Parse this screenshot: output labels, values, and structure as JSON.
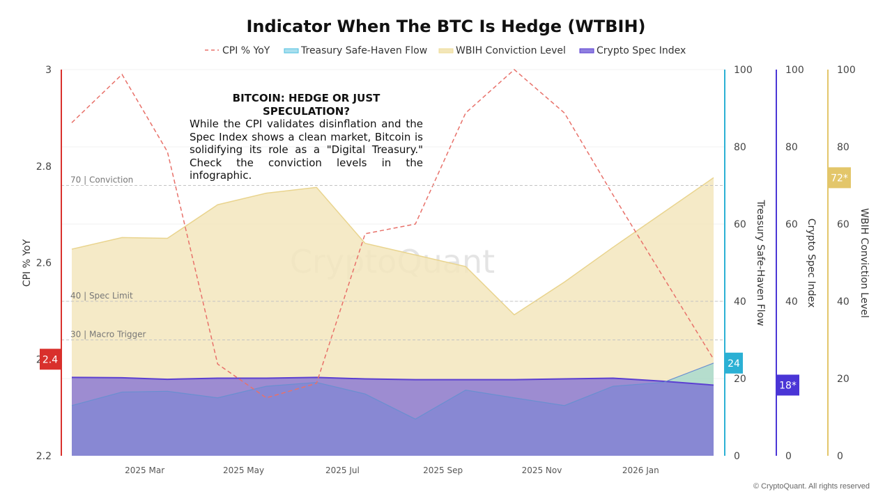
{
  "title": "Indicator When The BTC Is Hedge (WTBIH)",
  "legend": [
    {
      "label": "CPI % YoY",
      "color": "#e8716a",
      "style": "dashed"
    },
    {
      "label": "Treasury Safe-Haven Flow",
      "color": "#4fc0e0",
      "style": "area"
    },
    {
      "label": "WBIH Conviction Level",
      "color": "#eedc99",
      "style": "area"
    },
    {
      "label": "Crypto Spec Index",
      "color": "#5b3fd1",
      "style": "area"
    }
  ],
  "colors": {
    "cpi": "#e8716a",
    "treasury": "#5fc3dd",
    "conviction": "#e9d48e",
    "spec": "#5b3fd1",
    "cpi_badge": "#d9302c",
    "treasury_badge": "#2bb0d4",
    "spec_badge": "#4a35d6",
    "conviction_badge": "#e3c66a"
  },
  "annotation": {
    "title": "BITCOIN: HEDGE OR JUST SPECULATION?",
    "body": "While the CPI validates disinflation and the Spec Index shows a clean market, Bitcoin is solidifying its role as a \"Digital Treasury.\" Check the conviction levels in the infographic."
  },
  "watermark": "CryptoQuant",
  "copyright": "© CryptoQuant. All rights reserved",
  "chart_data": {
    "type": "line",
    "x_tick_labels": [
      "2025 Mar",
      "2025 May",
      "2025 Jul",
      "2025 Sep",
      "2025 Nov",
      "2026 Jan"
    ],
    "x": [
      "2025-01-15",
      "2025-02-15",
      "2025-03-15",
      "2025-04-15",
      "2025-05-15",
      "2025-06-15",
      "2025-07-15",
      "2025-08-15",
      "2025-09-15",
      "2025-10-15",
      "2025-11-15",
      "2025-12-15",
      "2026-01-15",
      "2026-02-15"
    ],
    "axes": {
      "cpi": {
        "title": "CPI % YoY",
        "ylim": [
          2.2,
          3.0
        ],
        "ticks": [
          "2.2",
          "2.4",
          "2.6",
          "2.8",
          "3"
        ]
      },
      "treasury": {
        "title": "Treasury Safe-Haven Flow",
        "ylim": [
          0,
          100
        ],
        "ticks": [
          "0",
          "20",
          "40",
          "60",
          "80",
          "100"
        ]
      },
      "spec": {
        "title": "Crypto Spec Index",
        "ylim": [
          0,
          100
        ],
        "ticks": [
          "0",
          "20",
          "40",
          "60",
          "80",
          "100"
        ]
      },
      "conviction": {
        "title": "WBIH Conviction Level",
        "ylim": [
          0,
          100
        ],
        "ticks": [
          "0",
          "20",
          "40",
          "60",
          "80",
          "100"
        ]
      }
    },
    "series": [
      {
        "name": "CPI % YoY",
        "axis": "cpi",
        "type": "line",
        "values": [
          2.89,
          2.99,
          2.83,
          2.39,
          2.32,
          2.35,
          2.66,
          2.68,
          2.91,
          3.0,
          2.91,
          2.74,
          2.57,
          2.4
        ]
      },
      {
        "name": "Treasury Safe-Haven Flow",
        "axis": "treasury",
        "type": "area",
        "values": [
          13,
          16.5,
          16.7,
          15,
          18,
          19,
          16,
          9.5,
          17,
          15,
          13,
          18,
          19,
          24
        ]
      },
      {
        "name": "WBIH Conviction Level",
        "axis": "conviction",
        "type": "area",
        "values": [
          53.5,
          56.5,
          56.3,
          65,
          68,
          69.5,
          55,
          52,
          49,
          36.5,
          45,
          54,
          63,
          72
        ]
      },
      {
        "name": "Crypto Spec Index",
        "axis": "spec",
        "type": "area",
        "values": [
          20.3,
          20.2,
          19.8,
          20.1,
          20.1,
          20.3,
          19.9,
          19.7,
          19.7,
          19.7,
          19.9,
          20.1,
          19.3,
          18.3
        ]
      }
    ],
    "reference_lines": [
      {
        "label": "70 | Conviction",
        "axis": "conviction",
        "value": 70
      },
      {
        "label": "40 | Spec Limit",
        "axis": "conviction",
        "value": 40
      },
      {
        "label": "30 | Macro Trigger",
        "axis": "conviction",
        "value": 30
      }
    ],
    "last_value_badges": [
      {
        "series": "CPI % YoY",
        "text": "2.4"
      },
      {
        "series": "Treasury Safe-Haven Flow",
        "text": "24"
      },
      {
        "series": "Crypto Spec Index",
        "text": "18*"
      },
      {
        "series": "WBIH Conviction Level",
        "text": "72*"
      }
    ],
    "grid": true,
    "legend_position": "top-center"
  }
}
